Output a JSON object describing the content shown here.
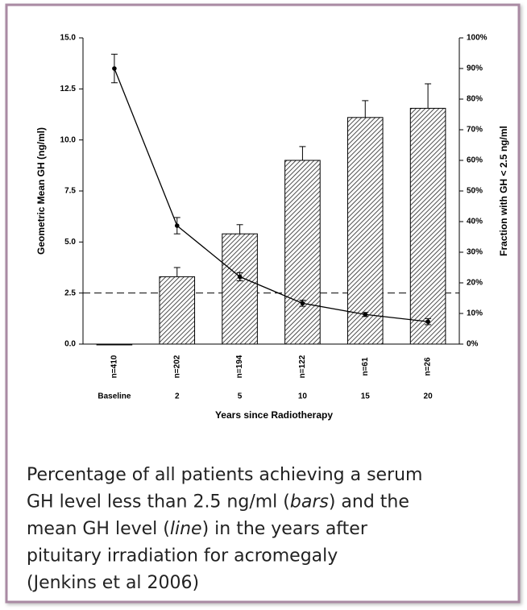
{
  "chart_data": {
    "type": "bar_line",
    "x_label": "Years since Radiotherapy",
    "y_label": "Geometric Mean GH (ng/ml)",
    "y2_label": "Fraction with GH < 2.5 ng/ml",
    "categories": [
      "Baseline",
      "2",
      "5",
      "10",
      "15",
      "20"
    ],
    "n_labels": [
      "n=410",
      "n=202",
      "n=194",
      "n=122",
      "n=61",
      "n=26"
    ],
    "ylim": [
      0,
      15
    ],
    "yticks": [
      {
        "value": 0,
        "label": "0.0"
      },
      2.5,
      {
        "value": 5,
        "label": "5.0"
      },
      7.5,
      {
        "value": 10,
        "label": "10.0"
      },
      12.5,
      {
        "value": 15,
        "label": "15.0"
      }
    ],
    "y2lim": [
      0,
      100
    ],
    "y2ticks": [
      {
        "value": 0,
        "label": "0%"
      },
      {
        "value": 10,
        "label": "10%"
      },
      {
        "value": 20,
        "label": "20%"
      },
      {
        "value": 30,
        "label": "30%"
      },
      {
        "value": 40,
        "label": "40%"
      },
      {
        "value": 50,
        "label": "50%"
      },
      {
        "value": 60,
        "label": "60%"
      },
      {
        "value": 70,
        "label": "70%"
      },
      {
        "value": 80,
        "label": "80%"
      },
      {
        "value": 90,
        "label": "90%"
      },
      {
        "value": 100,
        "label": "100%"
      }
    ],
    "reference_line": 2.5,
    "series": [
      {
        "type": "bar",
        "axis": "y2",
        "color": "#000000",
        "values": [
          0,
          22,
          36,
          60,
          74,
          77
        ],
        "errors": [
          null,
          3,
          3,
          4.5,
          5.5,
          8
        ]
      },
      {
        "type": "line",
        "color": "#000000",
        "values": [
          13.5,
          5.8,
          3.3,
          2.0,
          1.45,
          1.1
        ],
        "errors": [
          0.7,
          0.4,
          0.2,
          0.15,
          0.1,
          0.15
        ]
      }
    ]
  },
  "caption": [
    [
      "Percentage of all patients achieving a serum"
    ],
    [
      "GH level less than 2.5 ng/ml (",
      "bars",
      ") and the"
    ],
    [
      "mean GH level (",
      "line",
      ") in the years after"
    ],
    [
      "pituitary irradiation for acromegaly"
    ],
    [
      "(Jenkins et al 2006)"
    ]
  ]
}
